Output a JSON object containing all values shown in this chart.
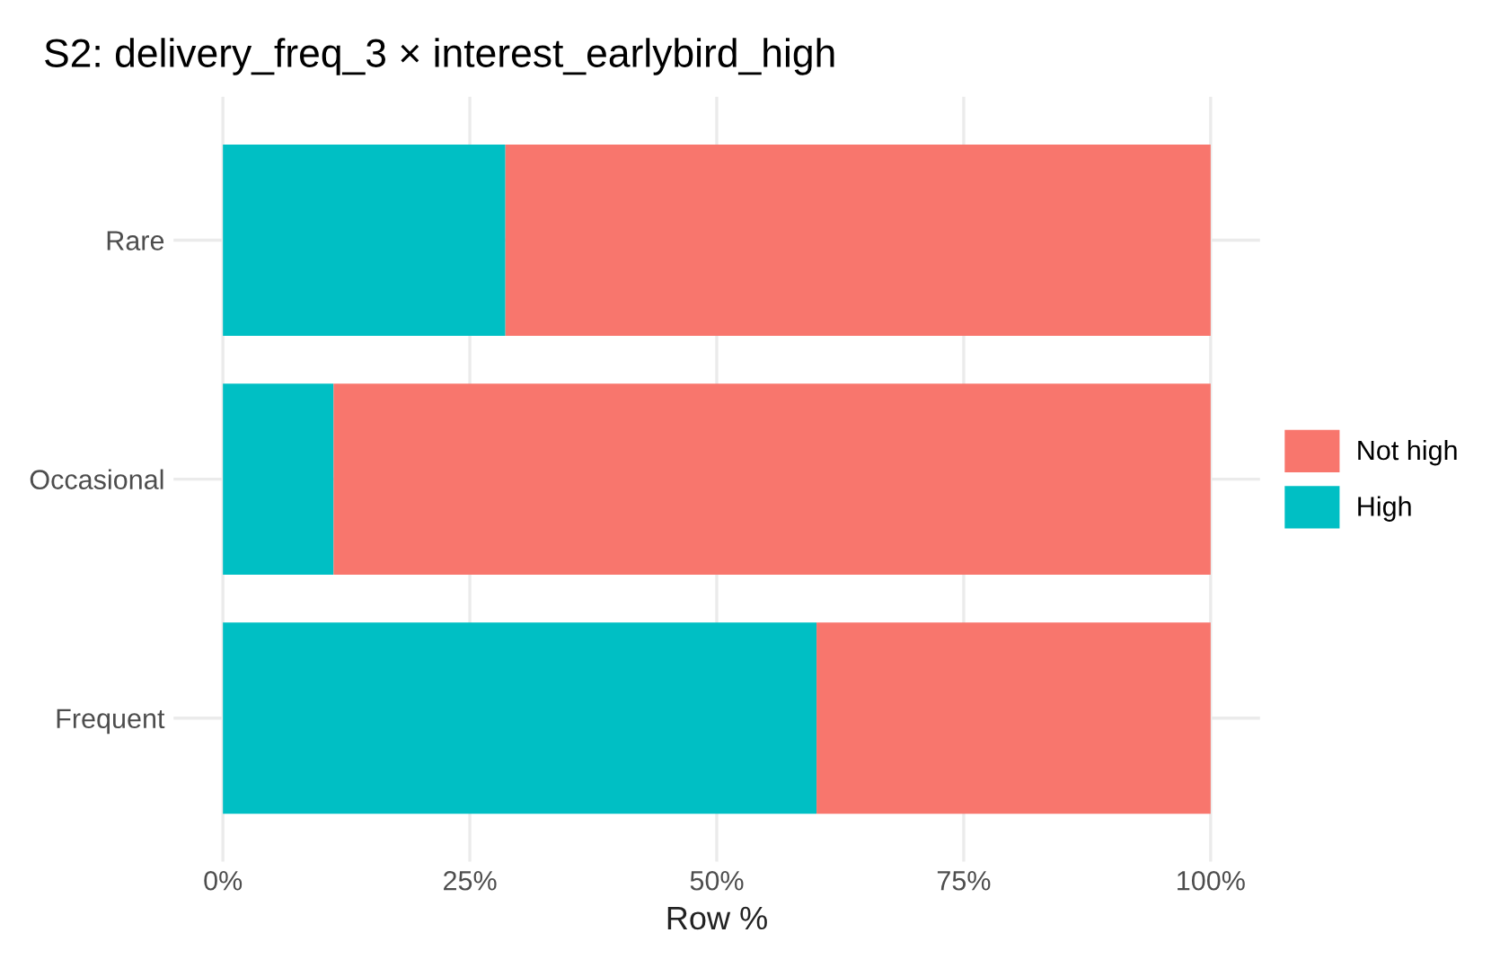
{
  "chart_data": {
    "type": "bar",
    "orientation": "horizontal",
    "stacked": true,
    "title": "S2: delivery_freq_3 × interest_earlybird_high",
    "xlabel": "Row %",
    "categories": [
      "Rare",
      "Occasional",
      "Frequent"
    ],
    "series": [
      {
        "name": "High",
        "color": "#00bfc4",
        "values": [
          28.6,
          11.2,
          60.1
        ]
      },
      {
        "name": "Not high",
        "color": "#f8766d",
        "values": [
          71.4,
          88.8,
          39.9
        ]
      }
    ],
    "xlim": [
      -5,
      105
    ],
    "xticks": [
      {
        "value": 0,
        "label": "0%"
      },
      {
        "value": 25,
        "label": "25%"
      },
      {
        "value": 50,
        "label": "50%"
      },
      {
        "value": 75,
        "label": "75%"
      },
      {
        "value": 100,
        "label": "100%"
      }
    ],
    "grid": true,
    "legend": "right"
  }
}
